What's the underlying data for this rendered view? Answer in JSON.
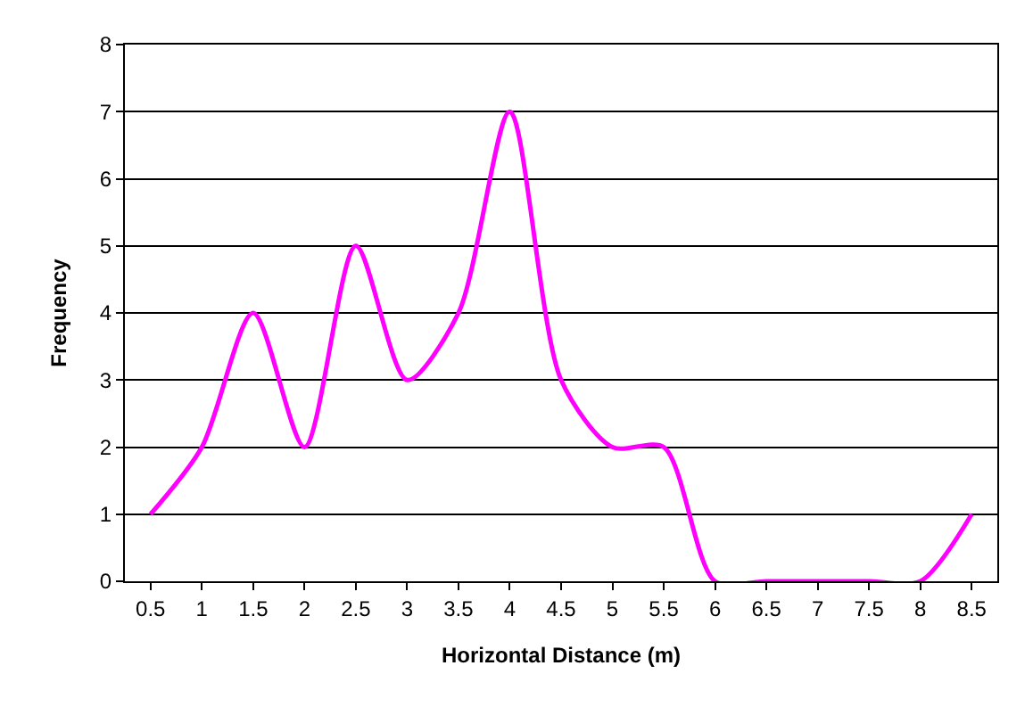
{
  "chart_data": {
    "type": "line",
    "xlabel": "Horizontal Distance (m)",
    "ylabel": "Frequency",
    "categories": [
      "0.5",
      "1",
      "1.5",
      "2",
      "2.5",
      "3",
      "3.5",
      "4",
      "4.5",
      "5",
      "5.5",
      "6",
      "6.5",
      "7",
      "7.5",
      "8",
      "8.5"
    ],
    "series": [
      {
        "color": "#ff00ff",
        "values": [
          1,
          2,
          4,
          2,
          5,
          3,
          4,
          7,
          3,
          2,
          2,
          0,
          0,
          0,
          0,
          0,
          1
        ]
      }
    ],
    "ylim": [
      0,
      8
    ],
    "yticks": [
      0,
      1,
      2,
      3,
      4,
      5,
      6,
      7,
      8
    ],
    "grid": "y",
    "legend": false,
    "marker": "none",
    "line_style": "solid"
  }
}
